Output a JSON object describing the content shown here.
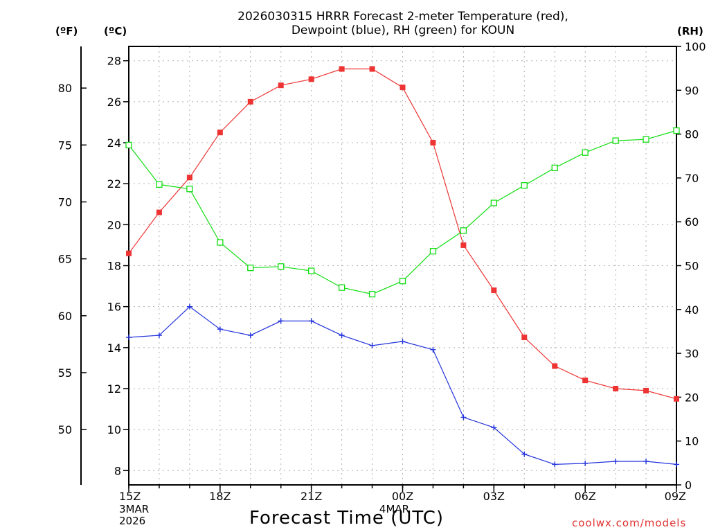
{
  "title": {
    "line1": "2026030315 HRRR Forecast 2-meter Temperature (red),",
    "line2": "Dewpoint (blue), RH (green) for KOUN"
  },
  "units": {
    "fahrenheit": "(ºF)",
    "celsius": "(ºC)",
    "rh": "(RH)"
  },
  "xlabel": "Forecast Time (UTC)",
  "credit": "coolwx.com/models",
  "colors": {
    "temperature": "#ee3333",
    "dewpoint": "#2233dd",
    "rh": "#11dd11",
    "grid": "#b0b0b0",
    "axis": "#000000"
  },
  "chart_data": {
    "type": "line",
    "title": "2026030315 HRRR Forecast 2-meter Temperature (red), Dewpoint (blue), RH (green) for KOUN",
    "xlabel": "Forecast Time (UTC)",
    "x_hours": [
      0,
      1,
      2,
      3,
      4,
      5,
      6,
      7,
      8,
      9,
      10,
      11,
      12,
      13,
      14,
      15,
      16,
      17,
      18
    ],
    "x_ticks": [
      {
        "hour": 0,
        "label": "15Z",
        "sub": [
          "3MAR",
          "2026"
        ]
      },
      {
        "hour": 3,
        "label": "18Z",
        "sub": []
      },
      {
        "hour": 6,
        "label": "21Z",
        "sub": []
      },
      {
        "hour": 9,
        "label": "00Z",
        "sub": [
          "4MAR"
        ]
      },
      {
        "hour": 12,
        "label": "03Z",
        "sub": []
      },
      {
        "hour": 15,
        "label": "06Z",
        "sub": []
      },
      {
        "hour": 18,
        "label": "09Z",
        "sub": []
      }
    ],
    "y_left_c": {
      "label": "(ºC)",
      "ticks": [
        8,
        10,
        12,
        14,
        16,
        18,
        20,
        22,
        24,
        26,
        28
      ],
      "range": [
        7.3,
        28.7
      ]
    },
    "y_left_f": {
      "label": "(ºF)",
      "ticks": [
        50,
        55,
        60,
        65,
        70,
        75,
        80
      ]
    },
    "y_right_rh": {
      "label": "(RH)",
      "ticks": [
        0,
        10,
        20,
        30,
        40,
        50,
        60,
        70,
        80,
        90,
        100
      ],
      "range": [
        0,
        100
      ]
    },
    "series": [
      {
        "name": "Temperature",
        "axis": "celsius",
        "color": "#ee3333",
        "marker": "filled-square",
        "values": [
          18.6,
          20.6,
          22.3,
          24.5,
          26.0,
          26.8,
          27.1,
          27.6,
          27.6,
          26.7,
          24.0,
          19.0,
          16.8,
          14.5,
          13.1,
          12.4,
          12.0,
          11.9,
          11.5
        ]
      },
      {
        "name": "Dewpoint",
        "axis": "celsius",
        "color": "#2233dd",
        "marker": "plus",
        "values": [
          14.5,
          14.6,
          16.0,
          14.9,
          14.6,
          15.3,
          15.3,
          14.6,
          14.1,
          14.3,
          13.9,
          10.6,
          10.1,
          8.8,
          8.3,
          8.35,
          8.45,
          8.45,
          8.3
        ]
      },
      {
        "name": "RH",
        "axis": "rh",
        "color": "#11dd11",
        "marker": "open-square",
        "values": [
          77.5,
          68.5,
          67.5,
          55.3,
          49.5,
          49.8,
          48.8,
          45.0,
          43.5,
          46.5,
          53.3,
          58.0,
          64.3,
          68.3,
          72.3,
          75.8,
          78.5,
          78.8,
          80.8
        ]
      }
    ]
  }
}
